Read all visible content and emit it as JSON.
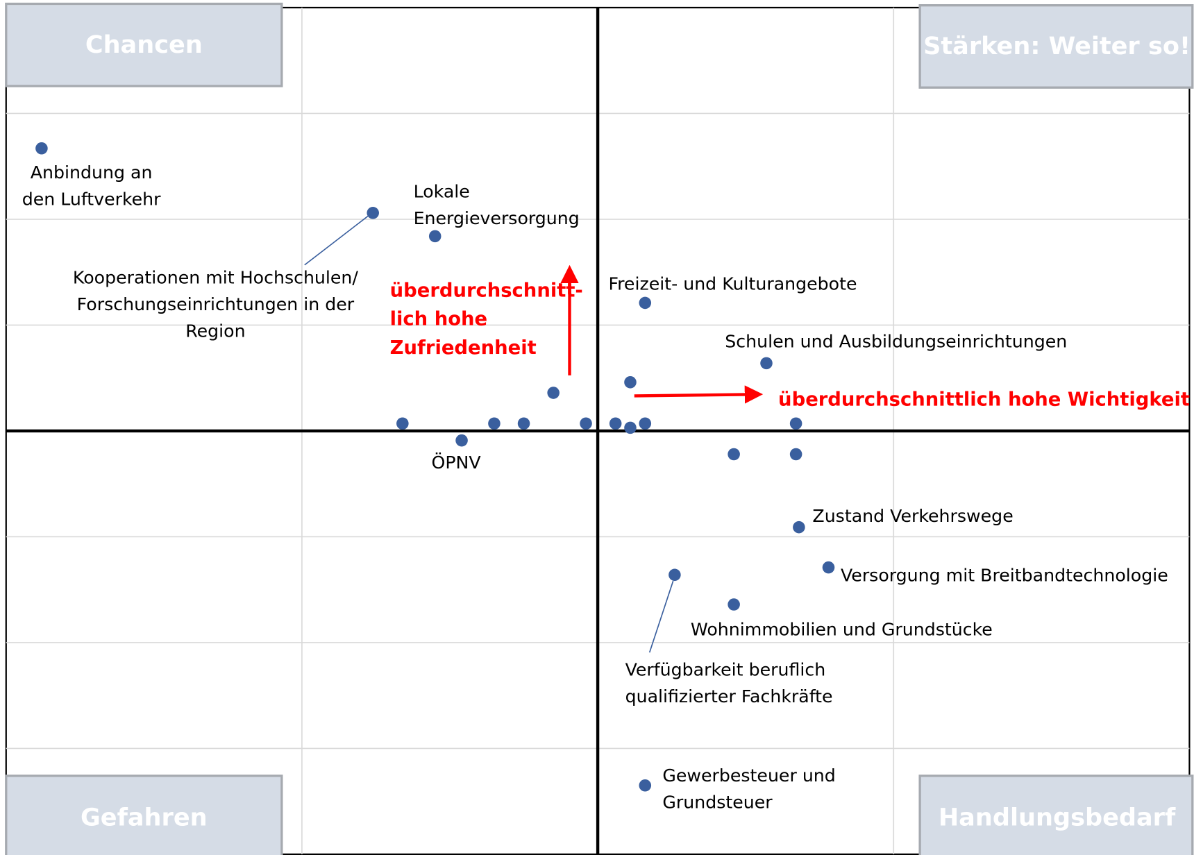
{
  "chart_data": {
    "type": "scatter",
    "color": "#3a5f9e",
    "xlim": [
      -2,
      2
    ],
    "ylim": [
      -4,
      4
    ],
    "xticks": [
      -1,
      0,
      1
    ],
    "yticks": [
      -3,
      -2,
      -1,
      0,
      1,
      2,
      3
    ],
    "grid": true,
    "quadrants": {
      "top_left": "Chancen",
      "top_right": "Stärken: Weiter so!",
      "bottom_left": "Gefahren",
      "bottom_right": "Handlungsbedarf"
    },
    "annotations": {
      "satisfaction": [
        "überdurchschnitt-",
        "lich hohe",
        "Zufriedenheit"
      ],
      "importance": "überdurchschnittlich hohe Wichtigkeit"
    },
    "x": [
      -1.88,
      -0.76,
      -0.55,
      0.16,
      0.57,
      0.11,
      -0.15,
      -0.66,
      -0.35,
      -0.25,
      -0.04,
      0.06,
      0.11,
      0.16,
      0.67,
      -0.46,
      0.46,
      0.67,
      0.68,
      0.78,
      0.26,
      0.46,
      0.16
    ],
    "y": [
      2.67,
      2.06,
      1.84,
      1.21,
      0.64,
      0.46,
      0.36,
      0.07,
      0.07,
      0.07,
      0.07,
      0.07,
      0.03,
      0.07,
      0.07,
      -0.09,
      -0.22,
      -0.22,
      -0.91,
      -1.29,
      -1.36,
      -1.64,
      -3.35
    ],
    "point_labels": [
      [
        "Anbindung an",
        "den Luftverkehr"
      ],
      [
        "Kooperationen mit Hochschulen/",
        "Forschungseinrichtungen in der",
        "Region"
      ],
      [
        "Lokale",
        "Energieversorgung"
      ],
      [
        "Freizeit- und Kulturangebote"
      ],
      [
        "Schulen und Ausbildungseinrichtungen"
      ],
      null,
      null,
      null,
      null,
      null,
      null,
      null,
      null,
      null,
      null,
      [
        "ÖPNV"
      ],
      null,
      null,
      [
        "Zustand Verkehrswege"
      ],
      [
        "Versorgung mit Breitbandtechnologie"
      ],
      [
        "Verfügbarkeit beruflich",
        "qualifizierter Fachkräfte"
      ],
      [
        "Wohnimmobilien und Grundstücke"
      ],
      [
        "Gewerbesteuer und",
        "Grundsteuer"
      ]
    ]
  }
}
